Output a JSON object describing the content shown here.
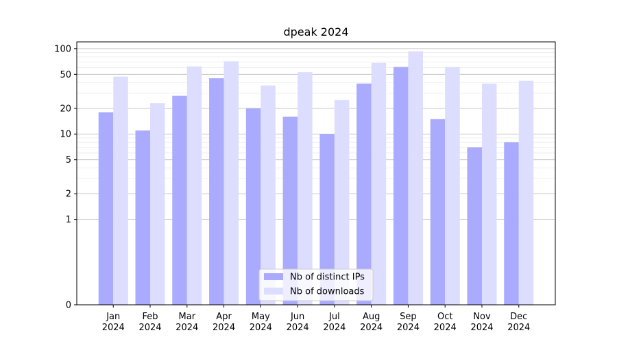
{
  "chart_data": {
    "type": "bar",
    "title": "dpeak 2024",
    "xlabel": "",
    "ylabel": "",
    "yscale": "symlog",
    "ylim": [
      0,
      120
    ],
    "y_ticks": [
      0,
      1,
      2,
      5,
      10,
      20,
      50,
      100
    ],
    "grid": true,
    "legend_position": "bottom-center",
    "categories": [
      [
        "Jan",
        "2024"
      ],
      [
        "Feb",
        "2024"
      ],
      [
        "Mar",
        "2024"
      ],
      [
        "Apr",
        "2024"
      ],
      [
        "May",
        "2024"
      ],
      [
        "Jun",
        "2024"
      ],
      [
        "Jul",
        "2024"
      ],
      [
        "Aug",
        "2024"
      ],
      [
        "Sep",
        "2024"
      ],
      [
        "Oct",
        "2024"
      ],
      [
        "Nov",
        "2024"
      ],
      [
        "Dec",
        "2024"
      ]
    ],
    "series": [
      {
        "name": "Nb of distinct IPs",
        "color": "#aaaaff",
        "values": [
          18,
          11,
          28,
          45,
          20,
          16,
          10,
          39,
          61,
          15,
          7,
          8
        ]
      },
      {
        "name": "Nb of downloads",
        "color": "#ddddff",
        "values": [
          47,
          23,
          62,
          71,
          37,
          53,
          25,
          68,
          93,
          61,
          39,
          42
        ]
      }
    ]
  }
}
